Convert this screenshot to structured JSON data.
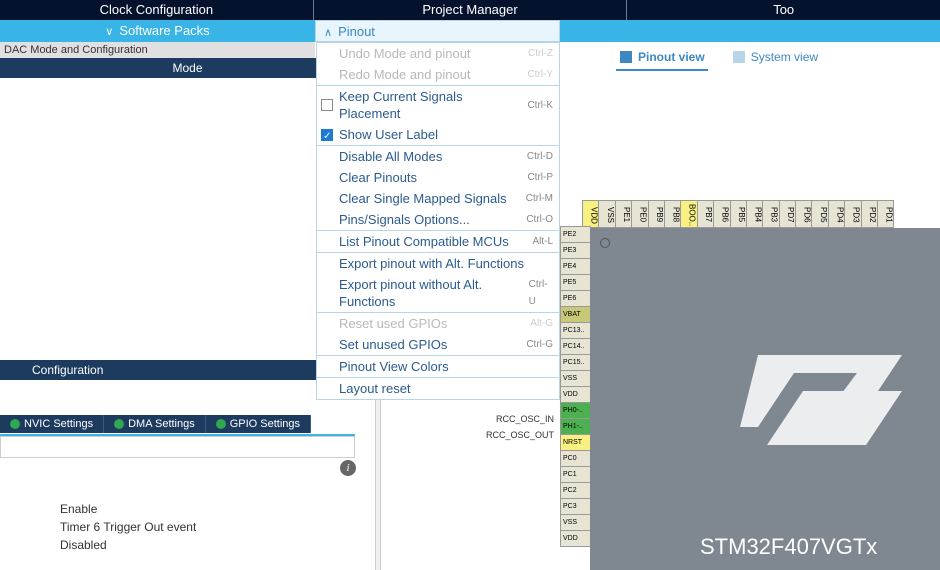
{
  "topbar": {
    "clock": "Clock Configuration",
    "pm": "Project Manager",
    "tools": "Too"
  },
  "secondbar": {
    "sw": "Software Packs",
    "pinout": "Pinout"
  },
  "dac": "DAC Mode and Configuration",
  "mode_label": "Mode",
  "menu": {
    "undo": "Undo Mode and pinout",
    "undo_sc": "Ctrl-Z",
    "redo": "Redo Mode and pinout",
    "redo_sc": "Ctrl-Y",
    "keep": "Keep Current Signals Placement",
    "keep_sc": "Ctrl-K",
    "show": "Show User Label",
    "disable": "Disable All Modes",
    "disable_sc": "Ctrl-D",
    "clear": "Clear Pinouts",
    "clear_sc": "Ctrl-P",
    "clearsm": "Clear Single Mapped Signals",
    "clearsm_sc": "Ctrl-M",
    "pinsopt": "Pins/Signals Options...",
    "pinsopt_sc": "Ctrl-O",
    "listmcu": "List Pinout Compatible MCUs",
    "listmcu_sc": "Alt-L",
    "exp1": "Export pinout with Alt. Functions",
    "exp2": "Export pinout without Alt. Functions",
    "exp2_sc": "Ctrl-U",
    "reset": "Reset used GPIOs",
    "reset_sc": "Alt-G",
    "setun": "Set unused GPIOs",
    "setun_sc": "Ctrl-G",
    "colors": "Pinout View Colors",
    "layout": "Layout reset"
  },
  "views": {
    "pinout": "Pinout view",
    "system": "System view"
  },
  "cfg": "Configuration",
  "tabs": {
    "nvic": "NVIC Settings",
    "dma": "DMA Settings",
    "gpio": "GPIO Settings"
  },
  "cfg_text": {
    "l1": "Enable",
    "l2": "Timer 6 Trigger Out event",
    "l3": "Disabled"
  },
  "chip_name": "STM32F407VGTx",
  "pin_labels": {
    "osc_in": "RCC_OSC_IN",
    "osc_out": "RCC_OSC_OUT"
  },
  "pins_top": [
    "VDD",
    "VSS",
    "PE1",
    "PE0",
    "PB9",
    "PB8",
    "BOO..",
    "PB7",
    "PB6",
    "PB5",
    "PB4",
    "PB3",
    "PD7",
    "PD6",
    "PD5",
    "PD4",
    "PD3",
    "PD2",
    "PD1"
  ],
  "pins_left": [
    "PE2",
    "PE3",
    "PE4",
    "PE5",
    "PE6",
    "VBAT",
    "PC13..",
    "PC14..",
    "PC15..",
    "VSS",
    "VDD",
    "PH0-..",
    "PH1-..",
    "NRST",
    "PC0",
    "PC1",
    "PC2",
    "PC3",
    "VSS",
    "VDD"
  ],
  "pins_left_colors": {
    "0": "",
    "1": "",
    "2": "",
    "3": "",
    "4": "",
    "5": "khaki",
    "6": "",
    "7": "",
    "8": "",
    "9": "",
    "10": "",
    "11": "green",
    "12": "green",
    "13": "yellow",
    "14": "",
    "15": "",
    "16": "",
    "17": "",
    "18": "",
    "19": ""
  },
  "pins_top_colors": {
    "0": "yellow",
    "1": "",
    "2": "",
    "3": "",
    "4": "",
    "5": "",
    "6": "yellow",
    "7": "",
    "8": "",
    "9": "",
    "10": "",
    "11": "",
    "12": "",
    "13": "",
    "14": "",
    "15": "",
    "16": "",
    "17": "",
    "18": ""
  }
}
